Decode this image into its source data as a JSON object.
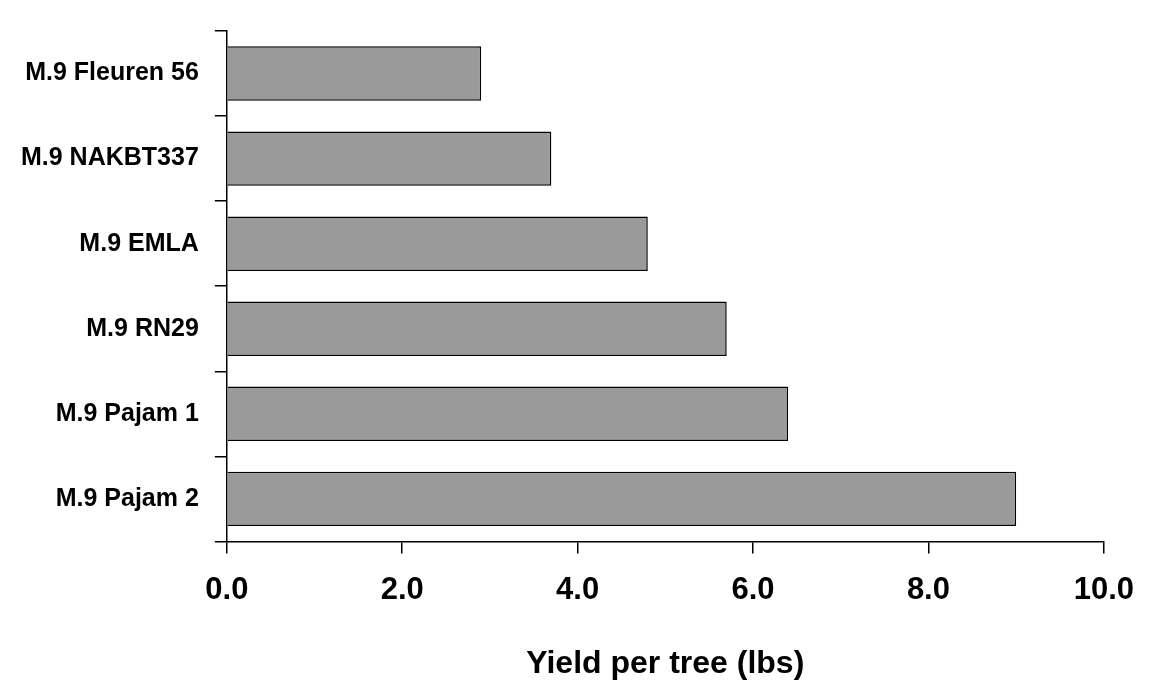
{
  "chart_data": {
    "type": "bar",
    "orientation": "horizontal",
    "xlabel": "Yield per tree (lbs)",
    "categories": [
      "M.9 Fleuren 56",
      "M.9 NAKBT337",
      "M.9 EMLA",
      "M.9 RN29",
      "M.9 Pajam 1",
      "M.9 Pajam 2"
    ],
    "values": [
      2.9,
      3.7,
      4.8,
      5.7,
      6.4,
      9.0
    ],
    "color": "#9a9a9a",
    "xlim": [
      0,
      10
    ],
    "xticks": [
      {
        "value": 0,
        "label": "0.0"
      },
      {
        "value": 2,
        "label": "2.0"
      },
      {
        "value": 4,
        "label": "4.0"
      },
      {
        "value": 6,
        "label": "6.0"
      },
      {
        "value": 8,
        "label": "8.0"
      },
      {
        "value": 10,
        "label": "10.0"
      }
    ],
    "grid": false,
    "legend": false
  }
}
